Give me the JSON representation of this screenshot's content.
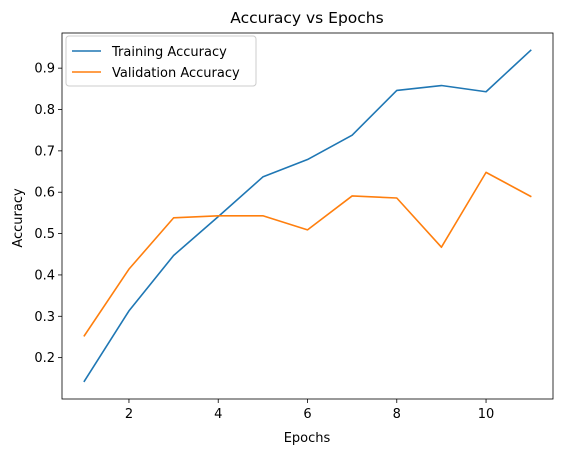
{
  "chart_data": {
    "type": "line",
    "title": "Accuracy vs Epochs",
    "xlabel": "Epochs",
    "ylabel": "Accuracy",
    "x": [
      1,
      2,
      3,
      4,
      5,
      6,
      7,
      8,
      9,
      10,
      11
    ],
    "xlim": [
      0.5,
      11.5
    ],
    "ylim": [
      0.1,
      0.985
    ],
    "xticks": [
      2,
      4,
      6,
      8,
      10
    ],
    "yticks": [
      0.2,
      0.3,
      0.4,
      0.5,
      0.6,
      0.7,
      0.8,
      0.9
    ],
    "xtick_labels": [
      "2",
      "4",
      "6",
      "8",
      "10"
    ],
    "ytick_labels": [
      "0.2",
      "0.3",
      "0.4",
      "0.5",
      "0.6",
      "0.7",
      "0.8",
      "0.9"
    ],
    "legend_position": "top-left",
    "series": [
      {
        "name": "Training Accuracy",
        "color": "#1f77b4",
        "values": [
          0.143,
          0.313,
          0.447,
          0.541,
          0.637,
          0.679,
          0.738,
          0.846,
          0.858,
          0.843,
          0.943
        ]
      },
      {
        "name": "Validation Accuracy",
        "color": "#ff7f0e",
        "values": [
          0.253,
          0.414,
          0.538,
          0.543,
          0.543,
          0.509,
          0.591,
          0.586,
          0.467,
          0.648,
          0.59
        ]
      }
    ]
  }
}
